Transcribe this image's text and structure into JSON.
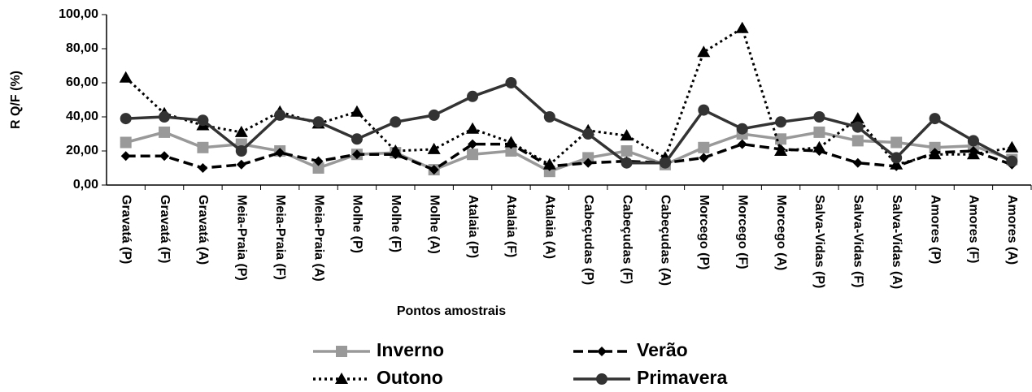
{
  "chart_data": {
    "type": "line",
    "x_label": "Pontos amostrais",
    "y_label": "R Q/F (%)",
    "categories": [
      "Gravatá (P)",
      "Gravatá (F)",
      "Gravatá (A)",
      "Meia-Praia (P)",
      "Meia-Praia (F)",
      "Meia-Praia (A)",
      "Molhe (P)",
      "Molhe (F)",
      "Molhe (A)",
      "Atalaia (P)",
      "Atalaia (F)",
      "Atalaia (A)",
      "Cabeçudas (P)",
      "Cabeçudas (F)",
      "Cabeçudas (A)",
      "Morcego (P)",
      "Morcego (F)",
      "Morcego (A)",
      "Salva-Vidas (P)",
      "Salva-Vidas (F)",
      "Salva-Vidas (A)",
      "Amores (P)",
      "Amores (F)",
      "Amores (A)"
    ],
    "series": [
      {
        "name": "Inverno",
        "color": "#999999",
        "style": "solid",
        "marker": "square",
        "values": [
          25,
          31,
          22,
          24,
          20,
          10,
          18,
          19,
          9,
          18,
          20,
          8,
          16,
          20,
          12,
          22,
          30,
          27,
          31,
          26,
          25,
          22,
          23,
          15
        ]
      },
      {
        "name": "Verão",
        "color": "#000000",
        "style": "dashed",
        "marker": "diamond",
        "values": [
          17,
          17,
          10,
          12,
          19,
          14,
          18,
          18,
          9,
          24,
          24,
          11,
          13,
          14,
          13,
          16,
          24,
          21,
          20,
          13,
          11,
          19,
          20,
          12
        ]
      },
      {
        "name": "Outono",
        "color": "#000000",
        "style": "dotted",
        "marker": "triangle",
        "values": [
          63,
          42,
          35,
          31,
          43,
          36,
          43,
          20,
          21,
          33,
          25,
          12,
          32,
          29,
          16,
          78,
          92,
          20,
          22,
          39,
          12,
          18,
          18,
          22
        ]
      },
      {
        "name": "Primavera",
        "color": "#333333",
        "style": "solid",
        "marker": "circle",
        "values": [
          39,
          40,
          38,
          20,
          41,
          37,
          27,
          37,
          41,
          52,
          60,
          40,
          30,
          13,
          13,
          44,
          33,
          37,
          40,
          34,
          16,
          39,
          26,
          14
        ]
      }
    ],
    "ylim": [
      0,
      100
    ],
    "yticks": [
      {
        "value": 0,
        "label": "0,00"
      },
      {
        "value": 20,
        "label": "20,00"
      },
      {
        "value": 40,
        "label": "40,00"
      },
      {
        "value": 60,
        "label": "60,00"
      },
      {
        "value": 80,
        "label": "80,00"
      },
      {
        "value": 100,
        "label": "100,00"
      }
    ],
    "grid": false,
    "legend": "bottom"
  }
}
